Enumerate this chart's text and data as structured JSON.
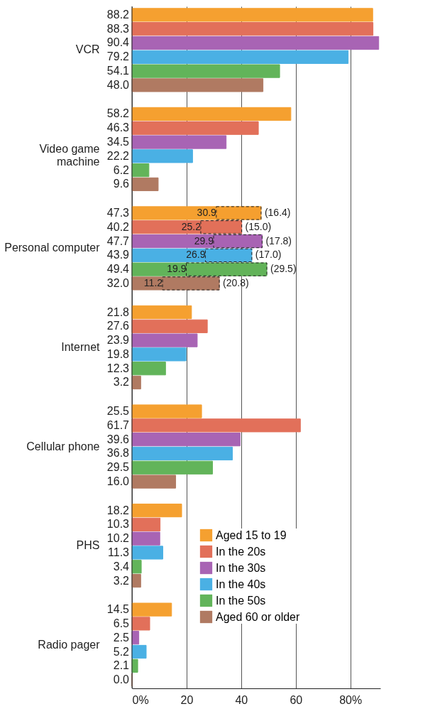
{
  "chart_data": {
    "type": "bar",
    "orientation": "horizontal",
    "categories": [
      "VCR",
      "Video game\nmachine",
      "Personal computer",
      "Internet",
      "Cellular phone",
      "PHS",
      "Radio pager"
    ],
    "xlim": [
      0,
      91
    ],
    "xticks": [
      {
        "value": 0,
        "label": "0%"
      },
      20,
      40,
      60,
      {
        "value": 80,
        "label": "80%"
      }
    ],
    "grid": "x",
    "legend": "bottom right",
    "series": [
      {
        "name": "Aged 15 to 19",
        "color": "#f5a030",
        "values": [
          88.2,
          58.2,
          47.3,
          21.8,
          25.5,
          18.2,
          14.5
        ],
        "value_labels": [
          "88.2",
          "58.2",
          "47.3",
          "21.8",
          "25.5",
          "18.2",
          "14.5"
        ]
      },
      {
        "name": "In the 20s",
        "color": "#e2705a",
        "values": [
          88.3,
          46.3,
          40.2,
          27.6,
          61.7,
          10.3,
          6.5
        ],
        "value_labels": [
          "88.3",
          "46.3",
          "40.2",
          "27.6",
          "61.7",
          "10.3",
          "6.5"
        ]
      },
      {
        "name": "In the 30s",
        "color": "#a864b4",
        "values": [
          90.4,
          34.5,
          47.7,
          23.9,
          39.6,
          10.2,
          2.5
        ],
        "value_labels": [
          "90.4",
          "34.5",
          "47.7",
          "23.9",
          "39.6",
          "10.2",
          "2.5"
        ]
      },
      {
        "name": "In the 40s",
        "color": "#4ab0e4",
        "values": [
          79.2,
          22.2,
          43.9,
          19.8,
          36.8,
          11.3,
          5.2
        ],
        "value_labels": [
          "79.2",
          "22.2",
          "43.9",
          "19.8",
          "36.8",
          "11.3",
          "5.2"
        ]
      },
      {
        "name": "In the 50s",
        "color": "#62b45a",
        "values": [
          54.1,
          6.2,
          49.4,
          12.3,
          29.5,
          3.4,
          2.1
        ],
        "value_labels": [
          "54.1",
          "6.2",
          "49.4",
          "12.3",
          "29.5",
          "3.4",
          "2.1"
        ]
      },
      {
        "name": "Aged 60 or older",
        "color": "#b07a62",
        "values": [
          48.0,
          9.6,
          32.0,
          3.2,
          16.0,
          3.2,
          0.0
        ],
        "value_labels": [
          "48.0",
          "9.6",
          "32.0",
          "3.2",
          "16.0",
          "3.2",
          "0.0"
        ]
      },
      {
        "color": "#f5a030",
        "line_style": "dashed",
        "base": [
          null,
          null,
          30.9,
          null,
          null,
          null,
          null
        ],
        "values": [
          null,
          null,
          16.4,
          null,
          null,
          null,
          null
        ],
        "value_labels": [
          null,
          null,
          "(16.4)",
          null,
          null,
          null,
          null
        ]
      },
      {
        "color": "#e2705a",
        "line_style": "dashed",
        "base": [
          null,
          null,
          25.2,
          null,
          null,
          null,
          null
        ],
        "values": [
          null,
          null,
          15.0,
          null,
          null,
          null,
          null
        ],
        "value_labels": [
          null,
          null,
          "(15.0)",
          null,
          null,
          null,
          null
        ]
      },
      {
        "color": "#a864b4",
        "line_style": "dashed",
        "base": [
          null,
          null,
          29.9,
          null,
          null,
          null,
          null
        ],
        "values": [
          null,
          null,
          17.8,
          null,
          null,
          null,
          null
        ],
        "value_labels": [
          null,
          null,
          "(17.8)",
          null,
          null,
          null,
          null
        ]
      },
      {
        "color": "#4ab0e4",
        "line_style": "dashed",
        "base": [
          null,
          null,
          26.9,
          null,
          null,
          null,
          null
        ],
        "values": [
          null,
          null,
          17.0,
          null,
          null,
          null,
          null
        ],
        "value_labels": [
          null,
          null,
          "(17.0)",
          null,
          null,
          null,
          null
        ]
      },
      {
        "color": "#62b45a",
        "line_style": "dashed",
        "base": [
          null,
          null,
          19.9,
          null,
          null,
          null,
          null
        ],
        "values": [
          null,
          null,
          29.5,
          null,
          null,
          null,
          null
        ],
        "value_labels": [
          null,
          null,
          "(29.5)",
          null,
          null,
          null,
          null
        ]
      },
      {
        "color": "#b07a62",
        "line_style": "dashed",
        "base": [
          null,
          null,
          11.2,
          null,
          null,
          null,
          null
        ],
        "values": [
          null,
          null,
          20.8,
          null,
          null,
          null,
          null
        ],
        "value_labels": [
          null,
          null,
          "(20.8)",
          null,
          null,
          null,
          null
        ]
      }
    ],
    "annotations": [
      "30.9",
      "25.2",
      "29.9",
      "26.9",
      "19.9",
      "11.2"
    ]
  }
}
